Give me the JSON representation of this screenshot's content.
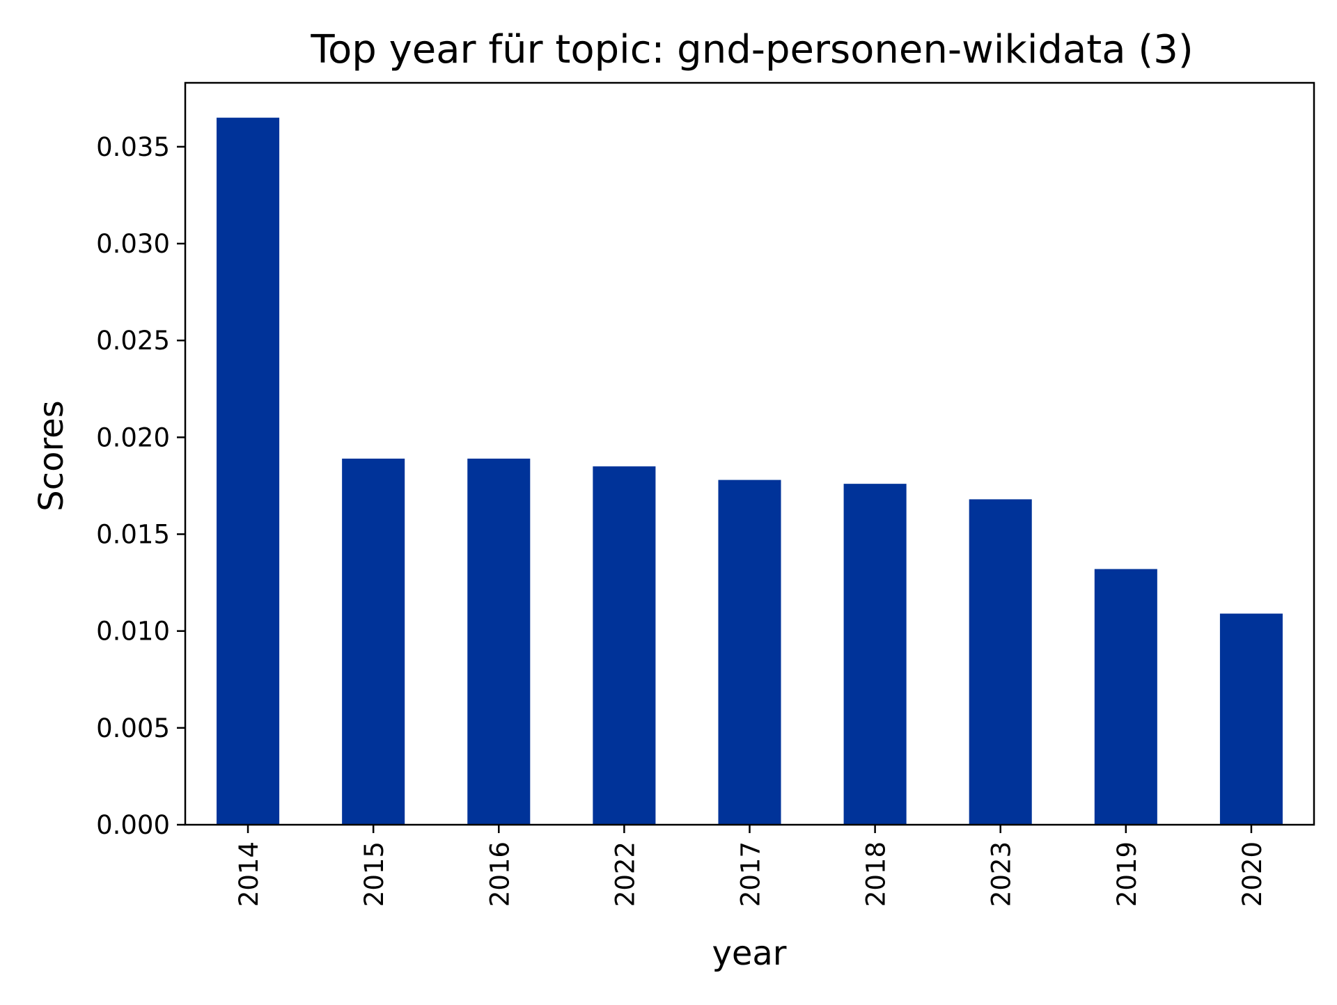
{
  "chart_data": {
    "type": "bar",
    "title": "Top year für topic: gnd-personen-wikidata (3)",
    "xlabel": "year",
    "ylabel": "Scores",
    "categories": [
      "2014",
      "2015",
      "2016",
      "2022",
      "2017",
      "2018",
      "2023",
      "2019",
      "2020"
    ],
    "values": [
      0.0365,
      0.0189,
      0.0189,
      0.0185,
      0.0178,
      0.0176,
      0.0168,
      0.0132,
      0.0109
    ],
    "ylim": [
      0,
      0.0383
    ],
    "yticks": [
      "0.000",
      "0.005",
      "0.010",
      "0.015",
      "0.020",
      "0.025",
      "0.030",
      "0.035"
    ],
    "bar_color": "#003399",
    "grid": false,
    "legend": "none"
  }
}
